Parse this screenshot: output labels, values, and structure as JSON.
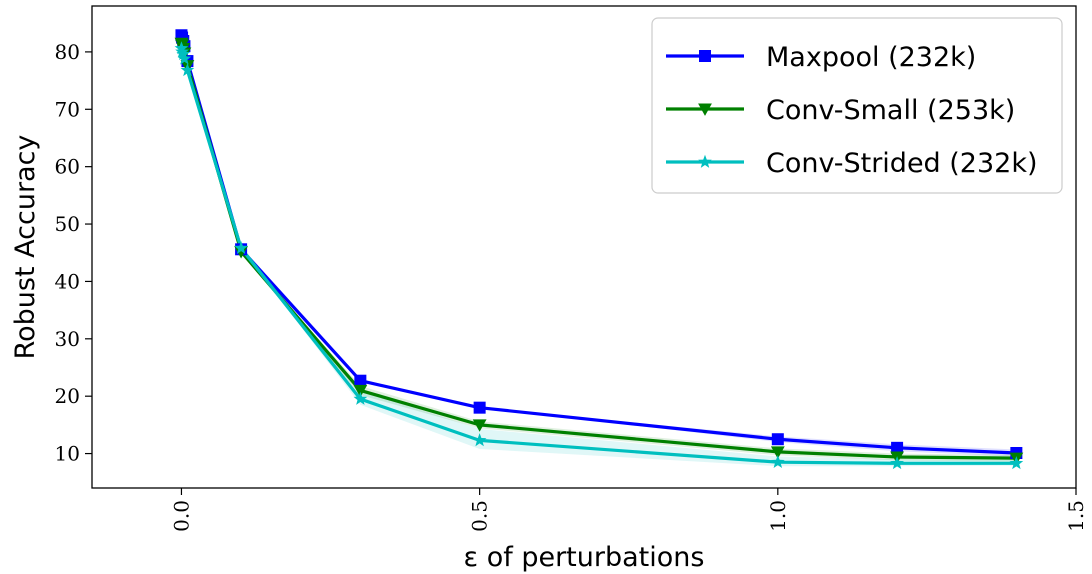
{
  "chart_data": {
    "type": "line",
    "xlabel": "ε of perturbations",
    "ylabel": "Robust Accuracy",
    "xlim": [
      -0.15,
      1.5
    ],
    "ylim": [
      4,
      88
    ],
    "xticks": [
      "0.0",
      "0.5",
      "1.0",
      "1.5"
    ],
    "xtick_values": [
      0.0,
      0.5,
      1.0,
      1.5
    ],
    "yticks": [
      "10",
      "20",
      "30",
      "40",
      "50",
      "60",
      "70",
      "80"
    ],
    "ytick_values": [
      10,
      20,
      30,
      40,
      50,
      60,
      70,
      80
    ],
    "grid": false,
    "legend_position": "top-right",
    "series": [
      {
        "name": "Maxpool (232k)",
        "color": "#0000ff",
        "marker": "square",
        "x": [
          0.0,
          0.001,
          0.003,
          0.005,
          0.01,
          0.1,
          0.3,
          0.5,
          1.0,
          1.2,
          1.4
        ],
        "y": [
          82.9,
          82.5,
          81.9,
          81.0,
          78.4,
          45.6,
          22.7,
          18.0,
          12.5,
          11.0,
          10.1
        ],
        "band": [
          [
            82.9,
            82.9
          ],
          [
            82.5,
            82.5
          ],
          [
            81.9,
            81.9
          ],
          [
            81.0,
            81.0
          ],
          [
            78.4,
            78.4
          ],
          [
            45.6,
            45.6
          ],
          [
            22.7,
            22.7
          ],
          [
            18.0,
            18.0
          ],
          [
            13.0,
            12.0
          ],
          [
            11.6,
            10.4
          ],
          [
            10.7,
            9.5
          ]
        ]
      },
      {
        "name": "Conv-Small (253k)",
        "color": "#008000",
        "marker": "triangle-down",
        "x": [
          0.0,
          0.001,
          0.003,
          0.005,
          0.01,
          0.1,
          0.3,
          0.5,
          1.0,
          1.2,
          1.4
        ],
        "y": [
          81.5,
          81.2,
          80.6,
          79.8,
          77.6,
          45.2,
          21.0,
          15.0,
          10.3,
          9.4,
          9.2
        ],
        "band": [
          [
            81.5,
            81.5
          ],
          [
            81.2,
            81.2
          ],
          [
            80.6,
            80.6
          ],
          [
            79.8,
            79.8
          ],
          [
            77.6,
            77.6
          ],
          [
            45.2,
            45.2
          ],
          [
            21.8,
            20.2
          ],
          [
            15.6,
            14.4
          ],
          [
            10.9,
            9.7
          ],
          [
            10.0,
            8.8
          ],
          [
            9.8,
            8.6
          ]
        ]
      },
      {
        "name": "Conv-Strided (232k)",
        "color": "#00bfbf",
        "marker": "star",
        "x": [
          0.0,
          0.001,
          0.003,
          0.005,
          0.01,
          0.1,
          0.3,
          0.5,
          1.0,
          1.2,
          1.4
        ],
        "y": [
          80.6,
          80.0,
          79.6,
          78.8,
          76.8,
          45.8,
          19.5,
          12.3,
          8.5,
          8.3,
          8.3
        ],
        "band": [
          [
            80.6,
            80.6
          ],
          [
            80.0,
            80.0
          ],
          [
            79.6,
            79.6
          ],
          [
            78.8,
            78.8
          ],
          [
            76.8,
            76.8
          ],
          [
            45.8,
            45.8
          ],
          [
            21.0,
            18.5
          ],
          [
            14.3,
            10.8
          ],
          [
            9.5,
            7.8
          ],
          [
            9.0,
            7.8
          ],
          [
            8.9,
            7.9
          ]
        ]
      }
    ]
  }
}
